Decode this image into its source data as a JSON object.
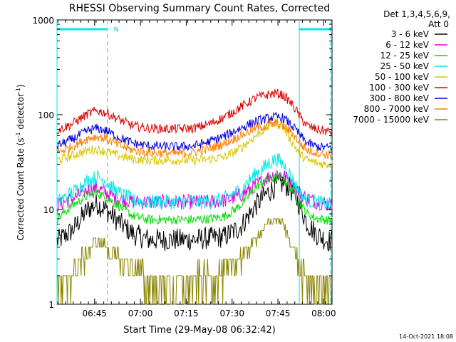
{
  "chart_data": {
    "type": "line",
    "title": "RHESSI Observing Summary Count Rates, Corrected",
    "xlabel": "Start Time (29-May-08 06:32:42)",
    "ylabel_main": "Corrected Count Rate (s",
    "ylabel_sup1": "-1",
    "ylabel_mid": " detector",
    "ylabel_sup2": "-1",
    "ylabel_end": ")",
    "y_scale": "log",
    "ylim": [
      1,
      1000
    ],
    "xlim_minutes": [
      0,
      90
    ],
    "x_ticks": [
      {
        "m": 12.3,
        "label": "06:45"
      },
      {
        "m": 27.3,
        "label": "07:00"
      },
      {
        "m": 42.3,
        "label": "07:15"
      },
      {
        "m": 57.3,
        "label": "07:30"
      },
      {
        "m": 72.3,
        "label": "07:45"
      },
      {
        "m": 87.3,
        "label": "08:00"
      }
    ],
    "y_ticks": [
      {
        "v": 1,
        "label": "1"
      },
      {
        "v": 10,
        "label": "10"
      },
      {
        "v": 100,
        "label": "100"
      },
      {
        "v": 1000,
        "label": "1000"
      }
    ],
    "legend_header_1": "Det 1,3,4,5,6,9,",
    "legend_header_2": "Att 0",
    "legend_placement": "right",
    "night_segments": [
      [
        0,
        16.5
      ],
      [
        79.3,
        91.8
      ]
    ],
    "night_marker": "N",
    "saa_vlines_minutes": [
      16.5,
      91.8
    ],
    "solid_vlines_minutes": [
      79.3
    ],
    "x_minutes": [
      0,
      5,
      10,
      13,
      16,
      20,
      25,
      30,
      35,
      40,
      45,
      50,
      55,
      60,
      65,
      68,
      70,
      72,
      74,
      76,
      78,
      80,
      82,
      85,
      88,
      90
    ],
    "series": [
      {
        "name": "3 - 6 keV",
        "color": "#000000",
        "values": [
          4.6,
          6,
          10,
          11.5,
          10,
          7.5,
          5.5,
          4.8,
          4.8,
          4.8,
          4.8,
          5.0,
          5.2,
          6.5,
          11,
          14,
          16,
          18,
          19,
          17,
          14,
          10,
          7,
          5.5,
          4.8,
          4.6
        ]
      },
      {
        "name": "6 - 12 keV",
        "color": "#e000e0",
        "values": [
          11,
          13,
          16,
          17,
          15,
          13,
          12,
          12,
          12,
          12,
          12,
          12,
          12.5,
          14,
          18,
          21,
          22.5,
          24,
          23,
          20,
          17,
          14.5,
          13,
          12,
          11.5,
          11
        ]
      },
      {
        "name": "12 - 25 keV",
        "color": "#00e000",
        "values": [
          8,
          11,
          14,
          15,
          13.5,
          11,
          8.5,
          7.8,
          7.8,
          7.8,
          7.8,
          8,
          8.5,
          11,
          17,
          20,
          21,
          22,
          21,
          18,
          14,
          11,
          9,
          8,
          7.8,
          7.6
        ]
      },
      {
        "name": "25 - 50 keV",
        "color": "#00e8e8",
        "values": [
          12,
          15,
          20,
          22,
          20,
          15,
          12.5,
          12,
          12,
          12,
          12,
          12,
          13,
          16,
          24,
          28,
          32,
          34,
          30,
          24,
          18,
          14,
          12.5,
          12,
          11.5,
          11
        ]
      },
      {
        "name": "50 - 100 keV",
        "color": "#d8c800",
        "values": [
          33,
          37,
          42,
          43,
          41,
          37,
          34,
          33,
          33,
          33,
          33,
          34,
          36,
          44,
          60,
          70,
          78,
          85,
          75,
          58,
          45,
          37,
          33,
          31,
          30,
          30
        ]
      },
      {
        "name": "100 - 300 keV",
        "color": "#e00000",
        "values": [
          68,
          80,
          102,
          110,
          105,
          90,
          76,
          72,
          71,
          71,
          72,
          80,
          95,
          120,
          150,
          160,
          165,
          168,
          160,
          140,
          115,
          90,
          76,
          70,
          67,
          66
        ]
      },
      {
        "name": "300 - 800 keV",
        "color": "#0000e0",
        "values": [
          47,
          55,
          68,
          72,
          68,
          58,
          50,
          47,
          46,
          46,
          47,
          52,
          60,
          72,
          85,
          90,
          93,
          95,
          92,
          82,
          70,
          58,
          50,
          46,
          45,
          45
        ]
      },
      {
        "name": "800 - 7000 keV",
        "color": "#ff8000",
        "values": [
          40,
          46,
          56,
          59,
          56,
          48,
          42,
          40,
          39,
          39,
          40,
          44,
          50,
          60,
          72,
          76,
          79,
          80,
          77,
          68,
          58,
          48,
          42,
          40,
          38,
          38
        ]
      },
      {
        "name": "7000 - 15000 keV",
        "color": "#8a8400",
        "values": [
          1.5,
          2,
          3.5,
          4.5,
          4,
          3,
          2.3,
          1.8,
          1.6,
          1.6,
          1.7,
          1.9,
          2.2,
          3,
          5,
          6.5,
          7.5,
          8,
          7,
          5,
          3.5,
          2.2,
          1.7,
          1.5,
          1.5,
          1.5
        ]
      }
    ]
  },
  "footer_timestamp": "14-Oct-2021 18:08"
}
